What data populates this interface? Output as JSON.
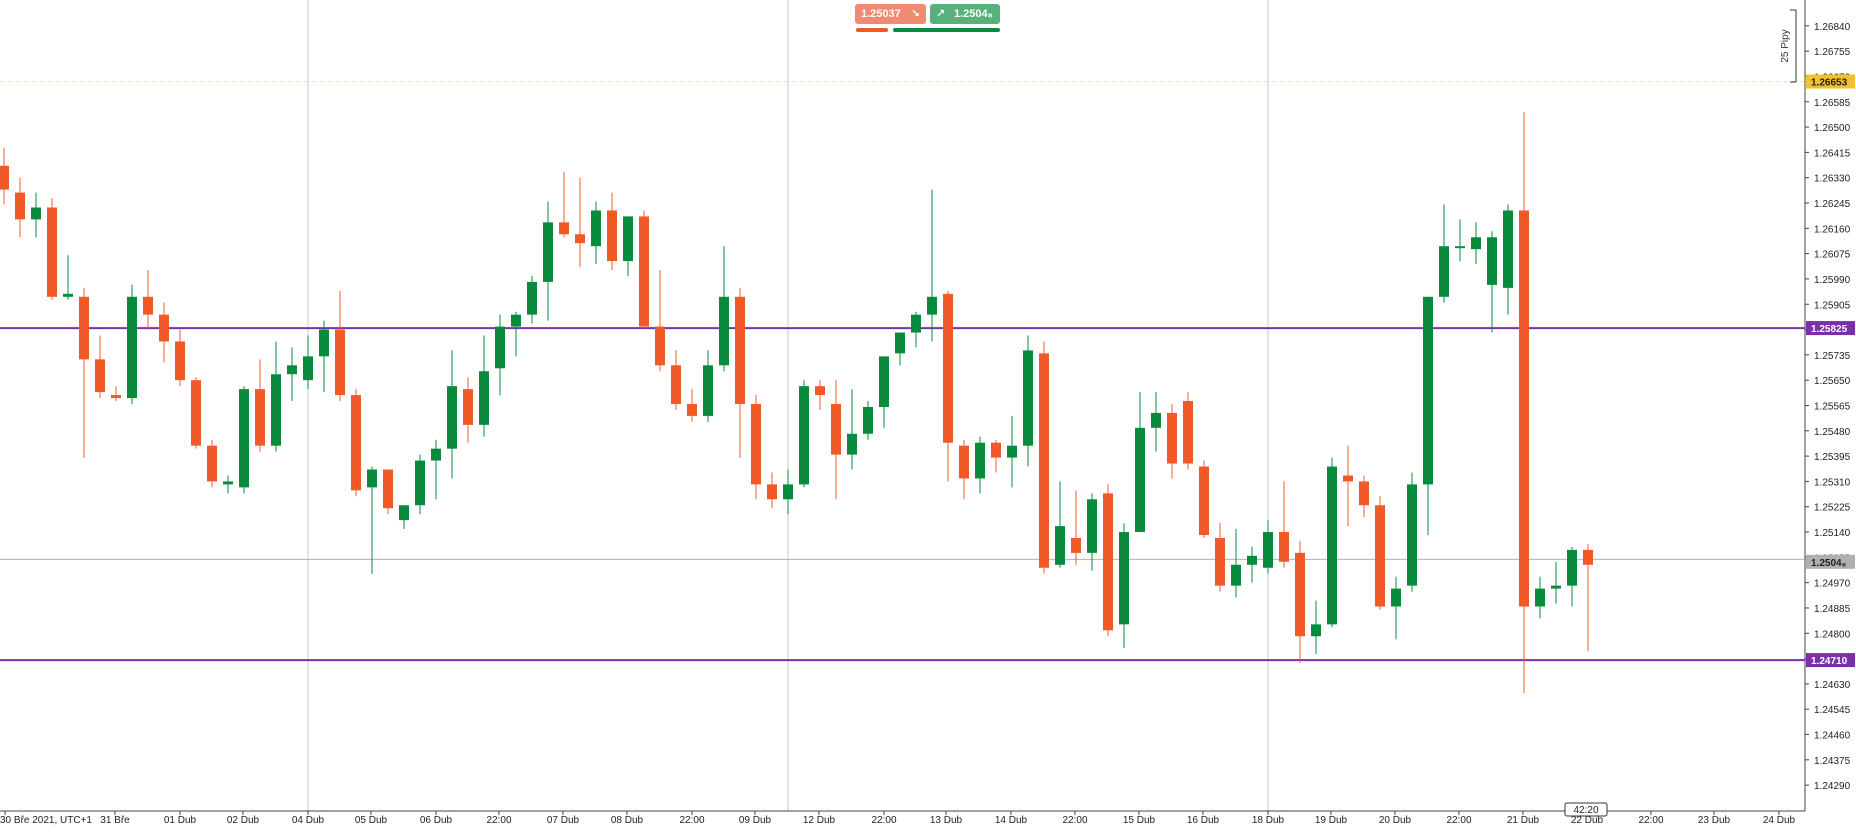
{
  "quote_panel": {
    "sell_price": "1.25037",
    "buy_price": "1.2504₈",
    "sell_arrow": "↘",
    "buy_arrow": "↗"
  },
  "scale_note": "25 Pipy",
  "time_tooltip": "42:20",
  "colors": {
    "bull": "#0a8a3c",
    "bear": "#f05a28",
    "level": "#7b2fa8",
    "current_price": "#b0b0b0",
    "alert": "#f2c12e"
  },
  "chart_data": {
    "type": "candlestick",
    "title": "",
    "xlabel": "",
    "ylabel": "",
    "ylim": [
      1.2423,
      1.2691
    ],
    "y_ticks": [
      "1.26840",
      "1.26755",
      "1.26670",
      "1.26585",
      "1.26500",
      "1.26415",
      "1.26330",
      "1.26245",
      "1.26160",
      "1.26075",
      "1.25990",
      "1.25905",
      "1.25820",
      "1.25735",
      "1.25650",
      "1.25565",
      "1.25480",
      "1.25395",
      "1.25310",
      "1.25225",
      "1.25140",
      "1.25055",
      "1.24970",
      "1.24885",
      "1.24800",
      "1.24715",
      "1.24630",
      "1.24545",
      "1.24460",
      "1.24375",
      "1.24290"
    ],
    "x_ticks": [
      "30 Bře 2021, UTC+1",
      "31 Bře",
      "01 Dub",
      "02 Dub",
      "04 Dub",
      "05 Dub",
      "06 Dub",
      "22:00",
      "07 Dub",
      "08 Dub",
      "22:00",
      "09 Dub",
      "12 Dub",
      "22:00",
      "13 Dub",
      "14 Dub",
      "22:00",
      "15 Dub",
      "16 Dub",
      "18 Dub",
      "19 Dub",
      "20 Dub",
      "22:00",
      "21 Dub",
      "22 Dub",
      "22:00",
      "23 Dub",
      "24 Dub"
    ],
    "price_labels": [
      {
        "value": "1.26653",
        "kind": "alert"
      },
      {
        "value": "1.25825",
        "kind": "level"
      },
      {
        "value": "1.2504₈",
        "kind": "current"
      },
      {
        "value": "1.24710",
        "kind": "level"
      }
    ],
    "levels": [
      1.25825,
      1.2471
    ],
    "current_price": 1.25048,
    "alert_level": 1.26653,
    "candles": [
      [
        1.2637,
        1.2643,
        1.2624,
        1.2629
      ],
      [
        1.2628,
        1.2633,
        1.2613,
        1.2619
      ],
      [
        1.2619,
        1.2628,
        1.2613,
        1.2623
      ],
      [
        1.2623,
        1.2626,
        1.2592,
        1.2593
      ],
      [
        1.2593,
        1.2607,
        1.2592,
        1.2594
      ],
      [
        1.2593,
        1.2596,
        1.2539,
        1.2572
      ],
      [
        1.2572,
        1.258,
        1.2559,
        1.2561
      ],
      [
        1.256,
        1.2563,
        1.2558,
        1.2559
      ],
      [
        1.2559,
        1.2597,
        1.2557,
        1.2593
      ],
      [
        1.2593,
        1.2602,
        1.2582,
        1.2587
      ],
      [
        1.2587,
        1.2591,
        1.2571,
        1.2578
      ],
      [
        1.2578,
        1.2582,
        1.2563,
        1.2565
      ],
      [
        1.2565,
        1.2566,
        1.2542,
        1.2543
      ],
      [
        1.2543,
        1.2545,
        1.2529,
        1.2531
      ],
      [
        1.253,
        1.2533,
        1.2527,
        1.2531
      ],
      [
        1.2529,
        1.2563,
        1.2527,
        1.2562
      ],
      [
        1.2562,
        1.2572,
        1.2541,
        1.2543
      ],
      [
        1.2543,
        1.2578,
        1.2541,
        1.2567
      ],
      [
        1.2567,
        1.2576,
        1.2558,
        1.257
      ],
      [
        1.2565,
        1.258,
        1.2562,
        1.2573
      ],
      [
        1.2573,
        1.2585,
        1.2561,
        1.2582
      ],
      [
        1.2582,
        1.2595,
        1.2558,
        1.256
      ],
      [
        1.256,
        1.2562,
        1.2526,
        1.2528
      ],
      [
        1.2529,
        1.2536,
        1.25,
        1.2535
      ],
      [
        1.2535,
        1.2535,
        1.252,
        1.2522
      ],
      [
        1.2518,
        1.2522,
        1.2515,
        1.2523
      ],
      [
        1.2523,
        1.254,
        1.252,
        1.2538
      ],
      [
        1.2538,
        1.2545,
        1.2525,
        1.2542
      ],
      [
        1.2542,
        1.2575,
        1.2532,
        1.2563
      ],
      [
        1.2562,
        1.2566,
        1.2544,
        1.255
      ],
      [
        1.255,
        1.258,
        1.2546,
        1.2568
      ],
      [
        1.2569,
        1.2587,
        1.256,
        1.2583
      ],
      [
        1.2583,
        1.2588,
        1.2573,
        1.2587
      ],
      [
        1.2587,
        1.26,
        1.2584,
        1.2598
      ],
      [
        1.2598,
        1.2625,
        1.2585,
        1.2618
      ],
      [
        1.2618,
        1.2635,
        1.2613,
        1.2614
      ],
      [
        1.2614,
        1.2633,
        1.2603,
        1.2611
      ],
      [
        1.261,
        1.2625,
        1.2604,
        1.2622
      ],
      [
        1.2622,
        1.2628,
        1.2602,
        1.2605
      ],
      [
        1.2605,
        1.262,
        1.26,
        1.262
      ],
      [
        1.262,
        1.2622,
        1.2583,
        1.2583
      ],
      [
        1.2583,
        1.2602,
        1.2568,
        1.257
      ],
      [
        1.257,
        1.2575,
        1.2555,
        1.2557
      ],
      [
        1.2557,
        1.2562,
        1.2551,
        1.2553
      ],
      [
        1.2553,
        1.2575,
        1.2551,
        1.257
      ],
      [
        1.257,
        1.261,
        1.2568,
        1.2593
      ],
      [
        1.2593,
        1.2596,
        1.2539,
        1.2557
      ],
      [
        1.2557,
        1.256,
        1.2525,
        1.253
      ],
      [
        1.253,
        1.2534,
        1.2522,
        1.2525
      ],
      [
        1.2525,
        1.2535,
        1.252,
        1.253
      ],
      [
        1.253,
        1.2565,
        1.2529,
        1.2563
      ],
      [
        1.2563,
        1.2565,
        1.2555,
        1.256
      ],
      [
        1.2557,
        1.2565,
        1.2525,
        1.254
      ],
      [
        1.254,
        1.2562,
        1.2535,
        1.2547
      ],
      [
        1.2547,
        1.2558,
        1.2545,
        1.2556
      ],
      [
        1.2556,
        1.2572,
        1.2549,
        1.2573
      ],
      [
        1.2574,
        1.258,
        1.257,
        1.2581
      ],
      [
        1.2581,
        1.2588,
        1.2576,
        1.2587
      ],
      [
        1.2587,
        1.2629,
        1.2578,
        1.2593
      ],
      [
        1.2594,
        1.2595,
        1.2531,
        1.2544
      ],
      [
        1.2543,
        1.2545,
        1.2525,
        1.2532
      ],
      [
        1.2532,
        1.2546,
        1.2527,
        1.2544
      ],
      [
        1.2544,
        1.2545,
        1.2534,
        1.2539
      ],
      [
        1.2539,
        1.2553,
        1.2529,
        1.2543
      ],
      [
        1.2543,
        1.258,
        1.2536,
        1.2575
      ],
      [
        1.2574,
        1.2578,
        1.25,
        1.2502
      ],
      [
        1.2503,
        1.2531,
        1.2502,
        1.2516
      ],
      [
        1.2512,
        1.2528,
        1.2503,
        1.2507
      ],
      [
        1.2507,
        1.2527,
        1.2501,
        1.2525
      ],
      [
        1.2527,
        1.253,
        1.2479,
        1.2481
      ],
      [
        1.2483,
        1.2517,
        1.2475,
        1.2514
      ],
      [
        1.2514,
        1.2561,
        1.2514,
        1.2549
      ],
      [
        1.2549,
        1.2561,
        1.2541,
        1.2554
      ],
      [
        1.2554,
        1.2557,
        1.2532,
        1.2537
      ],
      [
        1.2558,
        1.2561,
        1.2535,
        1.2537
      ],
      [
        1.2536,
        1.2538,
        1.2512,
        1.2513
      ],
      [
        1.2512,
        1.2517,
        1.2494,
        1.2496
      ],
      [
        1.2496,
        1.2515,
        1.2492,
        1.2503
      ],
      [
        1.2503,
        1.2509,
        1.2497,
        1.2506
      ],
      [
        1.2502,
        1.2518,
        1.25,
        1.2514
      ],
      [
        1.2514,
        1.2531,
        1.2502,
        1.2504
      ],
      [
        1.2507,
        1.2511,
        1.247,
        1.2479
      ],
      [
        1.2479,
        1.2491,
        1.2473,
        1.2483
      ],
      [
        1.2483,
        1.2539,
        1.2482,
        1.2536
      ],
      [
        1.2533,
        1.2543,
        1.2516,
        1.2531
      ],
      [
        1.2531,
        1.2533,
        1.2519,
        1.2523
      ],
      [
        1.2523,
        1.2526,
        1.2488,
        1.2489
      ],
      [
        1.2489,
        1.2499,
        1.2478,
        1.2495
      ],
      [
        1.2496,
        1.2534,
        1.2494,
        1.253
      ],
      [
        1.253,
        1.2593,
        1.2513,
        1.2593
      ],
      [
        1.2593,
        1.2624,
        1.2591,
        1.261
      ],
      [
        1.261,
        1.2619,
        1.2605,
        1.261
      ],
      [
        1.2609,
        1.2618,
        1.2604,
        1.2613
      ],
      [
        1.2597,
        1.2615,
        1.2581,
        1.2613
      ],
      [
        1.2596,
        1.2624,
        1.2587,
        1.2622
      ],
      [
        1.2622,
        1.2655,
        1.246,
        1.2489
      ],
      [
        1.2489,
        1.2499,
        1.2485,
        1.2495
      ],
      [
        1.2495,
        1.2504,
        1.249,
        1.2496
      ],
      [
        1.2496,
        1.2509,
        1.2489,
        1.2508
      ],
      [
        1.2508,
        1.251,
        1.2474,
        1.2503
      ]
    ]
  }
}
